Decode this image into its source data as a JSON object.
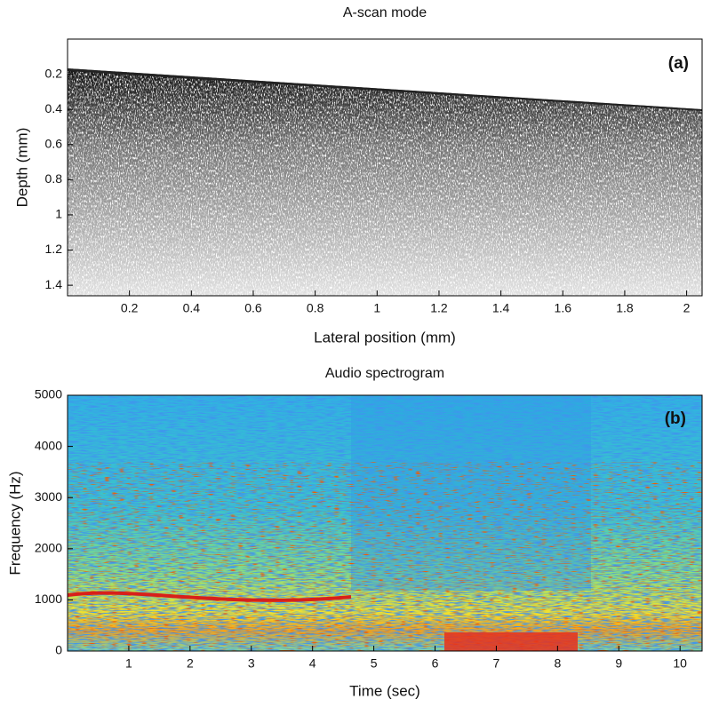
{
  "chart_data": [
    {
      "type": "image",
      "title": "A-scan mode",
      "x_label": "Lateral position (mm)",
      "y_label": "Depth (mm)",
      "annotation": "(a)",
      "xlim": [
        0,
        2.05
      ],
      "xticks": [
        0.2,
        0.4,
        0.6,
        0.8,
        1,
        1.2,
        1.4,
        1.6,
        1.8,
        2
      ],
      "ylim": [
        0,
        1.46
      ],
      "yticks": [
        0.2,
        0.4,
        0.6,
        0.8,
        1,
        1.2,
        1.4
      ],
      "y_reversed": true
    },
    {
      "type": "image",
      "title": "Audio spectrogram",
      "x_label": "Time (sec)",
      "y_label": "Frequency (Hz)",
      "annotation": "(b)",
      "xlim": [
        0,
        10.36
      ],
      "xticks": [
        1,
        2,
        3,
        4,
        5,
        6,
        7,
        8,
        9,
        10
      ],
      "ylim": [
        0,
        5000
      ],
      "yticks": [
        0,
        1000,
        2000,
        3000,
        4000,
        5000
      ],
      "y_reversed": false
    }
  ]
}
